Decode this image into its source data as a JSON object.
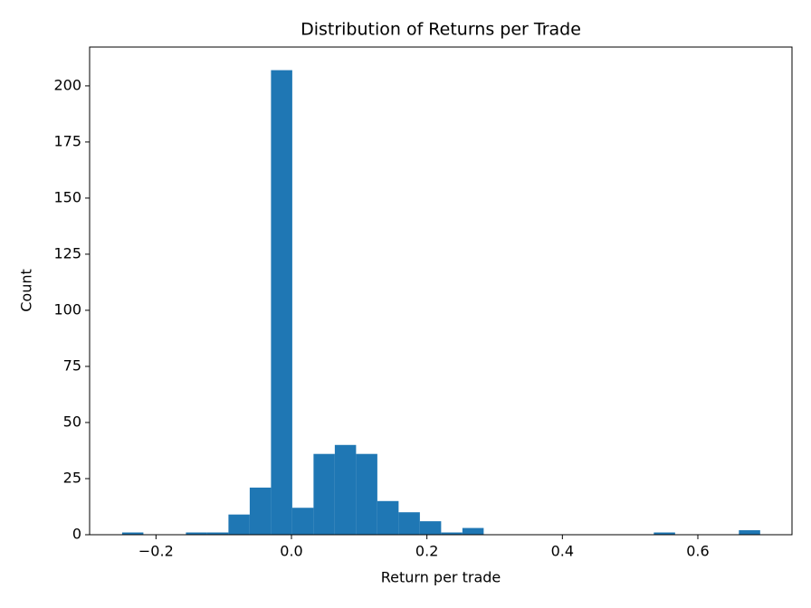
{
  "chart_data": {
    "type": "histogram",
    "title": "Distribution of Returns per Trade",
    "x_label": "Return per trade",
    "y_label": "Count",
    "color": "#1f77b4",
    "bins": [
      -0.25,
      -0.2186,
      -0.1872,
      -0.1558,
      -0.1244,
      -0.093,
      -0.0616,
      -0.0302,
      0.0012,
      0.0326,
      0.064,
      0.0954,
      0.1268,
      0.1582,
      0.1896,
      0.221,
      0.2524,
      0.2838,
      0.3152,
      0.3466,
      0.378,
      0.4094,
      0.4408,
      0.4722,
      0.5036,
      0.535,
      0.5664,
      0.5978,
      0.6292,
      0.6606,
      0.692
    ],
    "counts": [
      1,
      0,
      0,
      1,
      1,
      9,
      21,
      207,
      12,
      36,
      40,
      36,
      15,
      10,
      6,
      1,
      3,
      0,
      0,
      0,
      0,
      0,
      0,
      0,
      0,
      1,
      0,
      0,
      0,
      2
    ],
    "xlim": [
      -0.298,
      0.739
    ],
    "ylim": [
      0,
      217.3
    ],
    "xticks": [
      {
        "value": -0.2,
        "label": "−0.2"
      },
      {
        "value": 0,
        "label": "0.0"
      },
      0.2,
      0.4,
      0.6
    ],
    "yticks": [
      0,
      25,
      50,
      75,
      100,
      125,
      150,
      175,
      200
    ]
  }
}
